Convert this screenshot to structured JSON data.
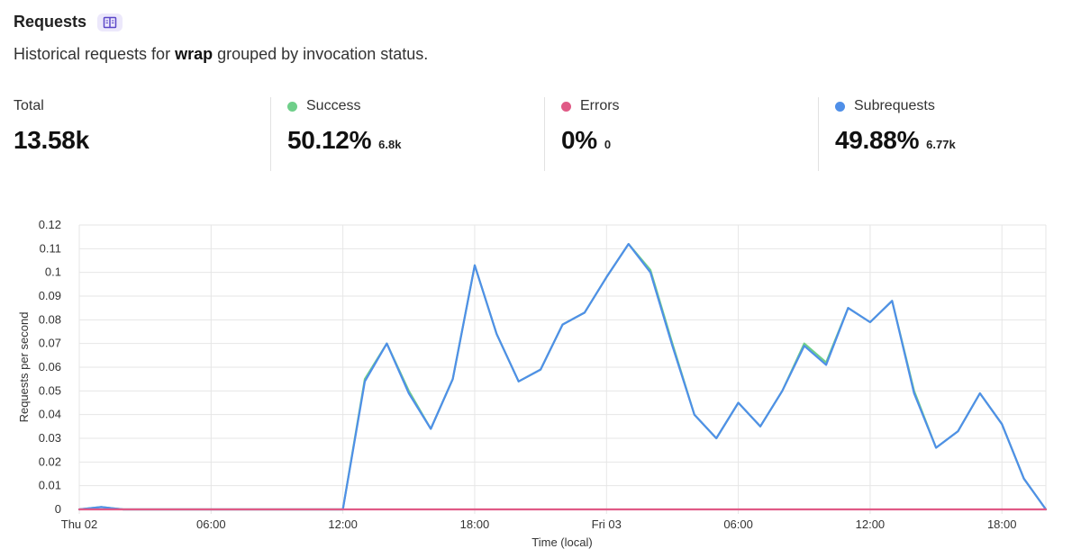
{
  "header": {
    "title": "Requests",
    "subtitle_prefix": "Historical requests for",
    "subtitle_bold": "wrap",
    "subtitle_suffix": "grouped by invocation status."
  },
  "stats": [
    {
      "label": "Total",
      "value": "13.58k",
      "sub": "",
      "color": ""
    },
    {
      "label": "Success",
      "value": "50.12%",
      "sub": "6.8k",
      "color": "#6fcf8a"
    },
    {
      "label": "Errors",
      "value": "0%",
      "sub": "0",
      "color": "#e05a86"
    },
    {
      "label": "Subrequests",
      "value": "49.88%",
      "sub": "6.77k",
      "color": "#4f8fe8"
    }
  ],
  "chart_data": {
    "type": "line",
    "xlabel": "Time (local)",
    "ylabel": "Requests per second",
    "ylim": [
      0,
      0.12
    ],
    "yticks": [
      "0",
      "0.01",
      "0.02",
      "0.03",
      "0.04",
      "0.05",
      "0.06",
      "0.07",
      "0.08",
      "0.09",
      "0.1",
      "0.11",
      "0.12"
    ],
    "xlim_hours": [
      0,
      44
    ],
    "xticks": [
      {
        "h": 0,
        "label": "Thu 02"
      },
      {
        "h": 6,
        "label": "06:00"
      },
      {
        "h": 12,
        "label": "12:00"
      },
      {
        "h": 18,
        "label": "18:00"
      },
      {
        "h": 24,
        "label": "Fri 03"
      },
      {
        "h": 30,
        "label": "06:00"
      },
      {
        "h": 36,
        "label": "12:00"
      },
      {
        "h": 42,
        "label": "18:00"
      }
    ],
    "grid": true,
    "series": [
      {
        "name": "Success",
        "color": "#6fcf8a",
        "x": [
          0,
          1,
          2,
          3,
          4,
          5,
          6,
          7,
          8,
          9,
          10,
          11,
          12,
          13,
          14,
          15,
          16,
          17,
          18,
          19,
          20,
          21,
          22,
          23,
          24,
          25,
          26,
          27,
          28,
          29,
          30,
          31,
          32,
          33,
          34,
          35,
          36,
          37,
          38,
          39,
          40,
          41,
          42,
          43,
          44
        ],
        "y": [
          0,
          0.001,
          0,
          0,
          0,
          0,
          0,
          0,
          0,
          0,
          0,
          0,
          0,
          0.055,
          0.07,
          0.05,
          0.034,
          0.055,
          0.103,
          0.074,
          0.054,
          0.059,
          0.078,
          0.083,
          0.098,
          0.112,
          0.101,
          0.07,
          0.04,
          0.03,
          0.045,
          0.035,
          0.05,
          0.07,
          0.062,
          0.085,
          0.079,
          0.088,
          0.05,
          0.026,
          0.033,
          0.049,
          0.036,
          0.013,
          0
        ]
      },
      {
        "name": "Subrequests",
        "color": "#4f8fe8",
        "x": [
          0,
          1,
          2,
          3,
          4,
          5,
          6,
          7,
          8,
          9,
          10,
          11,
          12,
          13,
          14,
          15,
          16,
          17,
          18,
          19,
          20,
          21,
          22,
          23,
          24,
          25,
          26,
          27,
          28,
          29,
          30,
          31,
          32,
          33,
          34,
          35,
          36,
          37,
          38,
          39,
          40,
          41,
          42,
          43,
          44
        ],
        "y": [
          0,
          0.001,
          0,
          0,
          0,
          0,
          0,
          0,
          0,
          0,
          0,
          0,
          0,
          0.054,
          0.07,
          0.049,
          0.034,
          0.055,
          0.103,
          0.074,
          0.054,
          0.059,
          0.078,
          0.083,
          0.098,
          0.112,
          0.1,
          0.069,
          0.04,
          0.03,
          0.045,
          0.035,
          0.05,
          0.069,
          0.061,
          0.085,
          0.079,
          0.088,
          0.049,
          0.026,
          0.033,
          0.049,
          0.036,
          0.013,
          0
        ]
      },
      {
        "name": "Errors",
        "color": "#e05a86",
        "x": [
          0,
          44
        ],
        "y": [
          0,
          0
        ]
      }
    ]
  }
}
